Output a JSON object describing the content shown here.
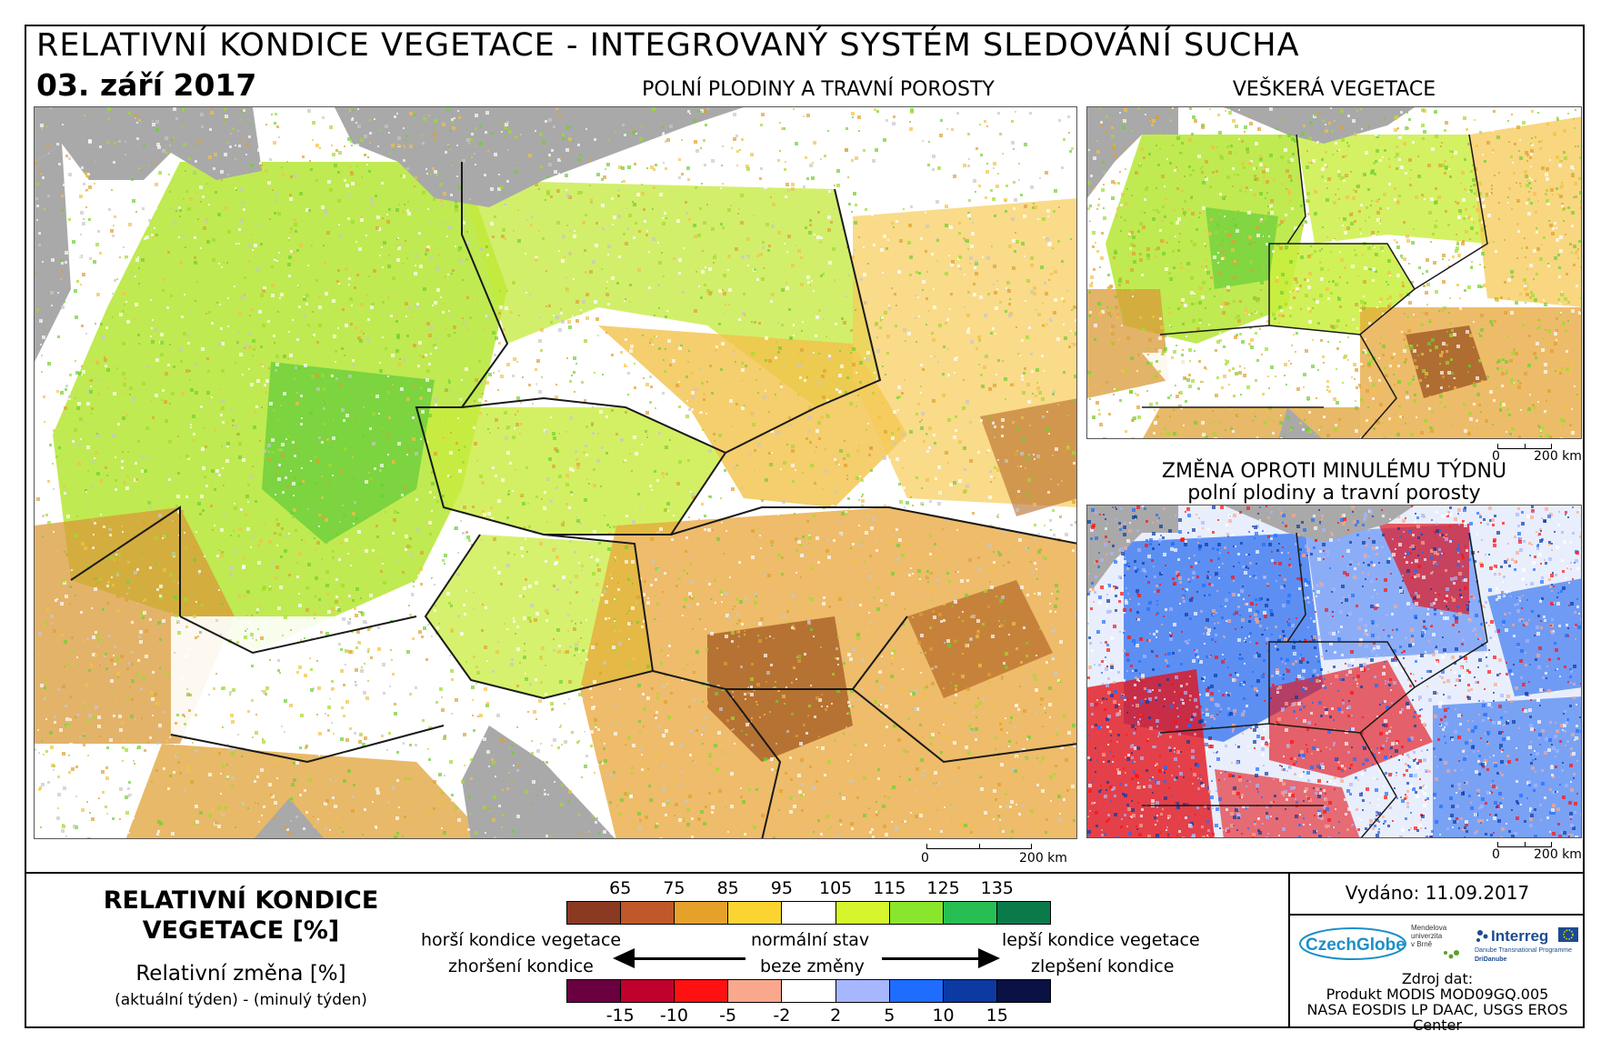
{
  "header": {
    "title": "RELATIVNÍ KONDICE VEGETACE - INTEGROVANÝ SYSTÉM SLEDOVÁNÍ SUCHA",
    "date": "03. září 2017"
  },
  "maps": {
    "main": {
      "title": "POLNÍ PLODINY A TRAVNÍ POROSTY",
      "scale_start": "0",
      "scale_end": "200 km"
    },
    "all_vegetation": {
      "title": "VEŠKERÁ VEGETACE",
      "scale_start": "0",
      "scale_end": "200 km"
    },
    "weekly_change": {
      "title_line1": "ZMĚNA OPROTI MINULÉMU TÝDNU",
      "title_line2": "polní plodiny a travní porosty",
      "scale_start": "0",
      "scale_end": "200 km"
    }
  },
  "legend": {
    "title_line1": "RELATIVNÍ KONDICE",
    "title_line2": "VEGETACE [%]",
    "change_title": "Relativní změna [%]",
    "change_formula": "(aktuální týden) - (minulý týden)",
    "condition_ticks": [
      "65",
      "75",
      "85",
      "95",
      "105",
      "115",
      "125",
      "135"
    ],
    "condition_colors": [
      "#8b3a22",
      "#c0582a",
      "#e5a12a",
      "#fbd431",
      "#ffffff",
      "#d7f52c",
      "#8ae62c",
      "#27bf53",
      "#0b7a4b"
    ],
    "change_ticks": [
      "-15",
      "-10",
      "-5",
      "-2",
      "2",
      "5",
      "10",
      "15"
    ],
    "change_colors": [
      "#6a0040",
      "#c0002d",
      "#ff1111",
      "#f9a88e",
      "#ffffff",
      "#a6b7ff",
      "#1e6dff",
      "#0c3aa2",
      "#0a1245"
    ],
    "worse_condition": "horší kondice vegetace",
    "normal_state": "normální stav",
    "better_condition": "lepší kondice vegetace",
    "worsening": "zhoršení kondice",
    "no_change": "beze změny",
    "improvement": "zlepšení kondice"
  },
  "info": {
    "issued": "Vydáno: 11.09.2017",
    "source_label": "Zdroj dat:",
    "source_line1": "Produkt MODIS MOD09GQ.005",
    "source_line2": "NASA EOSDIS LP DAAC, USGS EROS Center",
    "logo_czechglobe": "CzechGlobe",
    "logo_mendel": "Mendelova univerzita v Brně",
    "logo_interreg": "Interreg",
    "logo_interreg_sub": "Danube Transnational Programme",
    "logo_dridanube": "DriDanube"
  }
}
